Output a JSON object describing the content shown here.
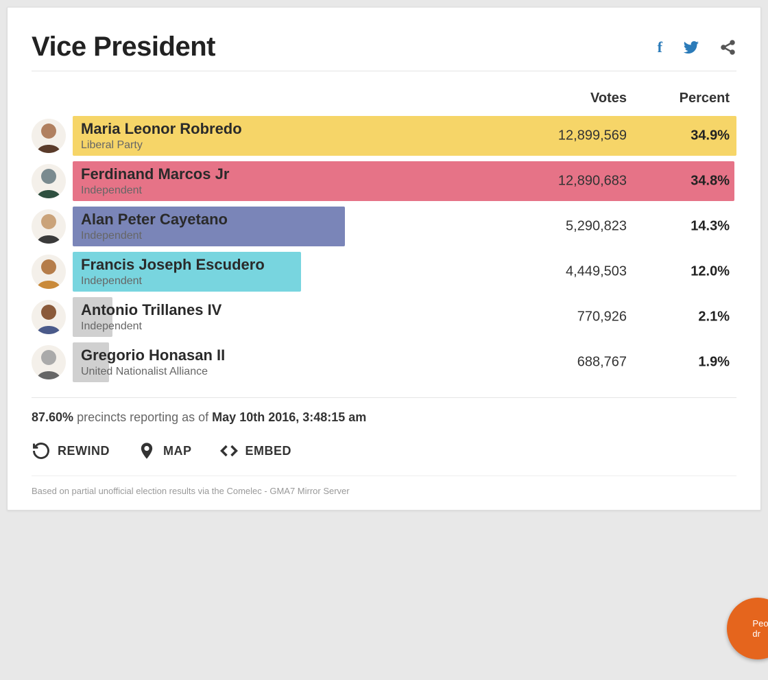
{
  "title": "Vice President",
  "columns": {
    "votes": "Votes",
    "percent": "Percent"
  },
  "bar_max_percent": 34.9,
  "candidates": [
    {
      "name": "Maria Leonor Robredo",
      "party": "Liberal Party",
      "votes": "12,899,569",
      "percent": "34.9%",
      "bar_pct": 34.9,
      "bar_color": "#f6d568",
      "avatar_bg": "#b08060",
      "avatar_shirt": "#5a3b2a"
    },
    {
      "name": "Ferdinand Marcos Jr",
      "party": "Independent",
      "votes": "12,890,683",
      "percent": "34.8%",
      "bar_pct": 34.8,
      "bar_color": "#e67387",
      "avatar_bg": "#7a8a8f",
      "avatar_shirt": "#2f5040"
    },
    {
      "name": "Alan Peter Cayetano",
      "party": "Independent",
      "votes": "5,290,823",
      "percent": "14.3%",
      "bar_pct": 14.3,
      "bar_color": "#7a85b8",
      "avatar_bg": "#caa37a",
      "avatar_shirt": "#3a3a3a"
    },
    {
      "name": "Francis Joseph Escudero",
      "party": "Independent",
      "votes": "4,449,503",
      "percent": "12.0%",
      "bar_pct": 12.0,
      "bar_color": "#78d5df",
      "avatar_bg": "#b57d4a",
      "avatar_shirt": "#c98a3a"
    },
    {
      "name": "Antonio Trillanes IV",
      "party": "Independent",
      "votes": "770,926",
      "percent": "2.1%",
      "bar_pct": 2.1,
      "bar_color": "#d0d0d0",
      "avatar_bg": "#8a5a3a",
      "avatar_shirt": "#4a5a8a"
    },
    {
      "name": "Gregorio Honasan II",
      "party": "United Nationalist Alliance",
      "votes": "688,767",
      "percent": "1.9%",
      "bar_pct": 1.9,
      "bar_color": "#d0d0d0",
      "avatar_bg": "#aaaaaa",
      "avatar_shirt": "#666666"
    }
  ],
  "status": {
    "precincts_pct": "87.60%",
    "reporting_text": " precincts reporting as of ",
    "timestamp": "May 10th 2016, 3:48:15 am"
  },
  "actions": {
    "rewind": "REWIND",
    "map": "MAP",
    "embed": "EMBED"
  },
  "footnote": "Based on partial unofficial election results via the Comelec - GMA7 Mirror Server",
  "fab_text": "Peo\ndr",
  "colors": {
    "facebook": "#2b7bb9",
    "twitter": "#2b7bb9",
    "share": "#555",
    "card_bg": "#ffffff",
    "page_bg": "#e8e8e8",
    "fab_bg": "#e5651d"
  }
}
